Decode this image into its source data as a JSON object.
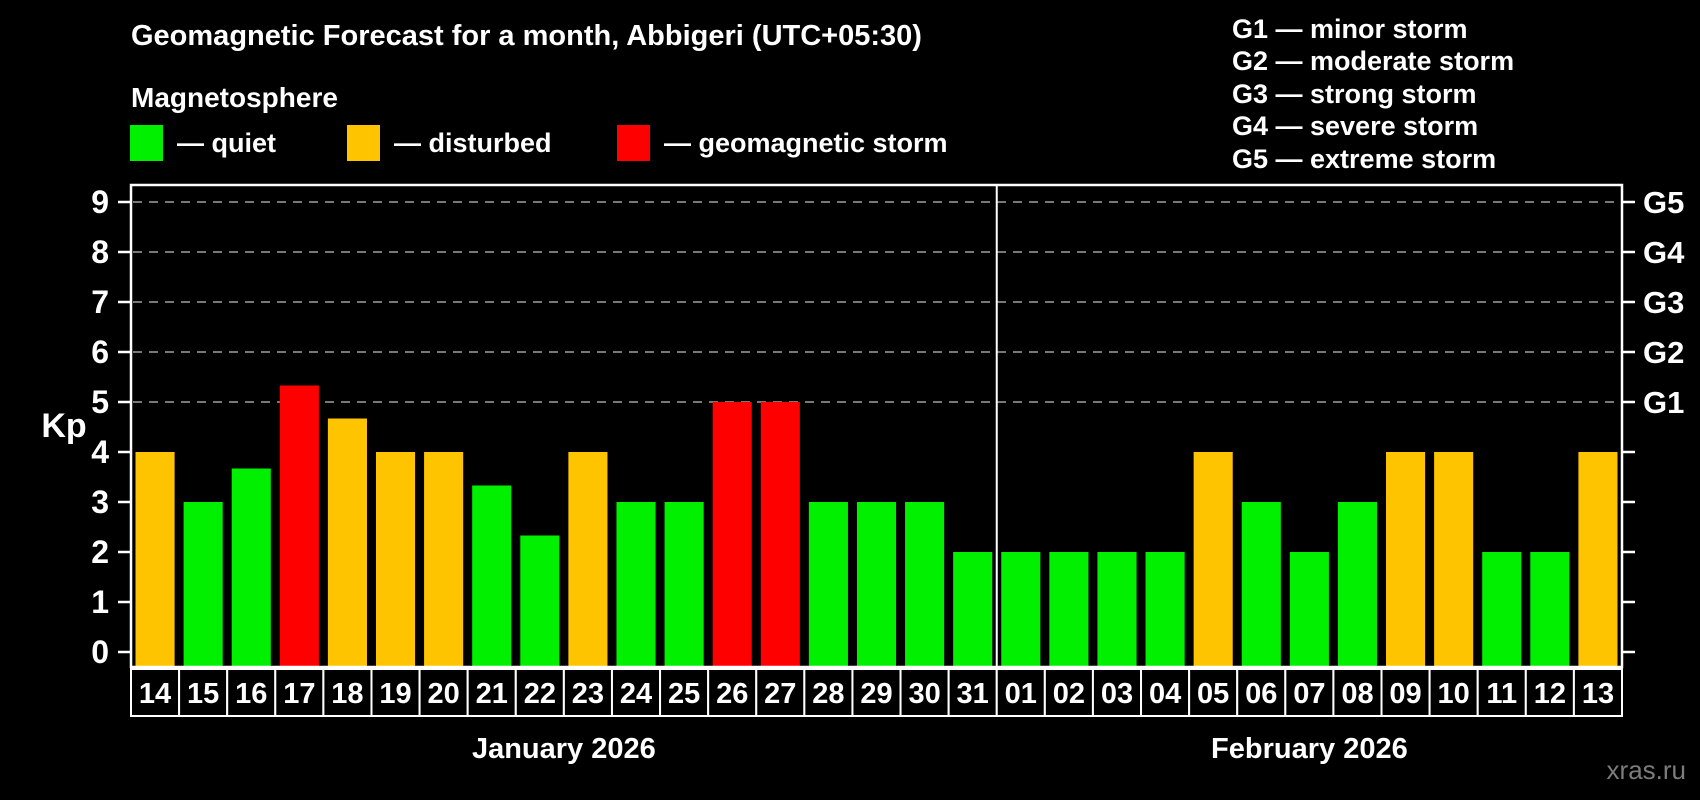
{
  "title": "Geomagnetic Forecast for a month, Abbigeri (UTC+05:30)",
  "subtitle": "Magnetosphere",
  "legend": {
    "items": [
      {
        "key": "quiet",
        "label": "— quiet",
        "color": "#00f000"
      },
      {
        "key": "disturbed",
        "label": "— disturbed",
        "color": "#ffc400"
      },
      {
        "key": "storm",
        "label": "— geomagnetic storm",
        "color": "#ff0000"
      }
    ]
  },
  "g_scale_legend": {
    "lines": [
      "G1 — minor storm",
      "G2 — moderate storm",
      "G3 — strong storm",
      "G4 — severe storm",
      "G5 — extreme storm"
    ]
  },
  "watermark": "xras.ru",
  "chart_data": {
    "type": "bar",
    "ylabel": "Kp",
    "ylim": [
      0,
      9.4
    ],
    "yticks": [
      0,
      1,
      2,
      3,
      4,
      5,
      6,
      7,
      8,
      9
    ],
    "gridlines_at_kp": [
      5,
      6,
      7,
      8,
      9
    ],
    "grid_style": "dashed horizontal lines only at G-storm levels",
    "right_axis": {
      "labels": [
        {
          "kp": 5,
          "label": "G1"
        },
        {
          "kp": 6,
          "label": "G2"
        },
        {
          "kp": 7,
          "label": "G3"
        },
        {
          "kp": 8,
          "label": "G4"
        },
        {
          "kp": 9,
          "label": "G5"
        }
      ]
    },
    "months": [
      {
        "label": "January 2026",
        "n_days": 18
      },
      {
        "label": "February 2026",
        "n_days": 13
      }
    ],
    "days": [
      {
        "day": "14",
        "month": "January 2026",
        "kp": 4.0,
        "status": "disturbed"
      },
      {
        "day": "15",
        "month": "January 2026",
        "kp": 3.0,
        "status": "quiet"
      },
      {
        "day": "16",
        "month": "January 2026",
        "kp": 3.67,
        "status": "quiet"
      },
      {
        "day": "17",
        "month": "January 2026",
        "kp": 5.33,
        "status": "storm"
      },
      {
        "day": "18",
        "month": "January 2026",
        "kp": 4.67,
        "status": "disturbed"
      },
      {
        "day": "19",
        "month": "January 2026",
        "kp": 4.0,
        "status": "disturbed"
      },
      {
        "day": "20",
        "month": "January 2026",
        "kp": 4.0,
        "status": "disturbed"
      },
      {
        "day": "21",
        "month": "January 2026",
        "kp": 3.33,
        "status": "quiet"
      },
      {
        "day": "22",
        "month": "January 2026",
        "kp": 2.33,
        "status": "quiet"
      },
      {
        "day": "23",
        "month": "January 2026",
        "kp": 4.0,
        "status": "disturbed"
      },
      {
        "day": "24",
        "month": "January 2026",
        "kp": 3.0,
        "status": "quiet"
      },
      {
        "day": "25",
        "month": "January 2026",
        "kp": 3.0,
        "status": "quiet"
      },
      {
        "day": "26",
        "month": "January 2026",
        "kp": 5.0,
        "status": "storm"
      },
      {
        "day": "27",
        "month": "January 2026",
        "kp": 5.0,
        "status": "storm"
      },
      {
        "day": "28",
        "month": "January 2026",
        "kp": 3.0,
        "status": "quiet"
      },
      {
        "day": "29",
        "month": "January 2026",
        "kp": 3.0,
        "status": "quiet"
      },
      {
        "day": "30",
        "month": "January 2026",
        "kp": 3.0,
        "status": "quiet"
      },
      {
        "day": "31",
        "month": "January 2026",
        "kp": 2.0,
        "status": "quiet"
      },
      {
        "day": "01",
        "month": "February 2026",
        "kp": 2.0,
        "status": "quiet"
      },
      {
        "day": "02",
        "month": "February 2026",
        "kp": 2.0,
        "status": "quiet"
      },
      {
        "day": "03",
        "month": "February 2026",
        "kp": 2.0,
        "status": "quiet"
      },
      {
        "day": "04",
        "month": "February 2026",
        "kp": 2.0,
        "status": "quiet"
      },
      {
        "day": "05",
        "month": "February 2026",
        "kp": 4.0,
        "status": "disturbed"
      },
      {
        "day": "06",
        "month": "February 2026",
        "kp": 3.0,
        "status": "quiet"
      },
      {
        "day": "07",
        "month": "February 2026",
        "kp": 2.0,
        "status": "quiet"
      },
      {
        "day": "08",
        "month": "February 2026",
        "kp": 3.0,
        "status": "quiet"
      },
      {
        "day": "09",
        "month": "February 2026",
        "kp": 4.0,
        "status": "disturbed"
      },
      {
        "day": "10",
        "month": "February 2026",
        "kp": 4.0,
        "status": "disturbed"
      },
      {
        "day": "11",
        "month": "February 2026",
        "kp": 2.0,
        "status": "quiet"
      },
      {
        "day": "12",
        "month": "February 2026",
        "kp": 2.0,
        "status": "quiet"
      },
      {
        "day": "13",
        "month": "February 2026",
        "kp": 4.0,
        "status": "disturbed"
      }
    ],
    "colors": {
      "axis": "#ffffff",
      "grid": "#a0a0a0",
      "text": "#ffffff",
      "background": "#000000"
    }
  }
}
